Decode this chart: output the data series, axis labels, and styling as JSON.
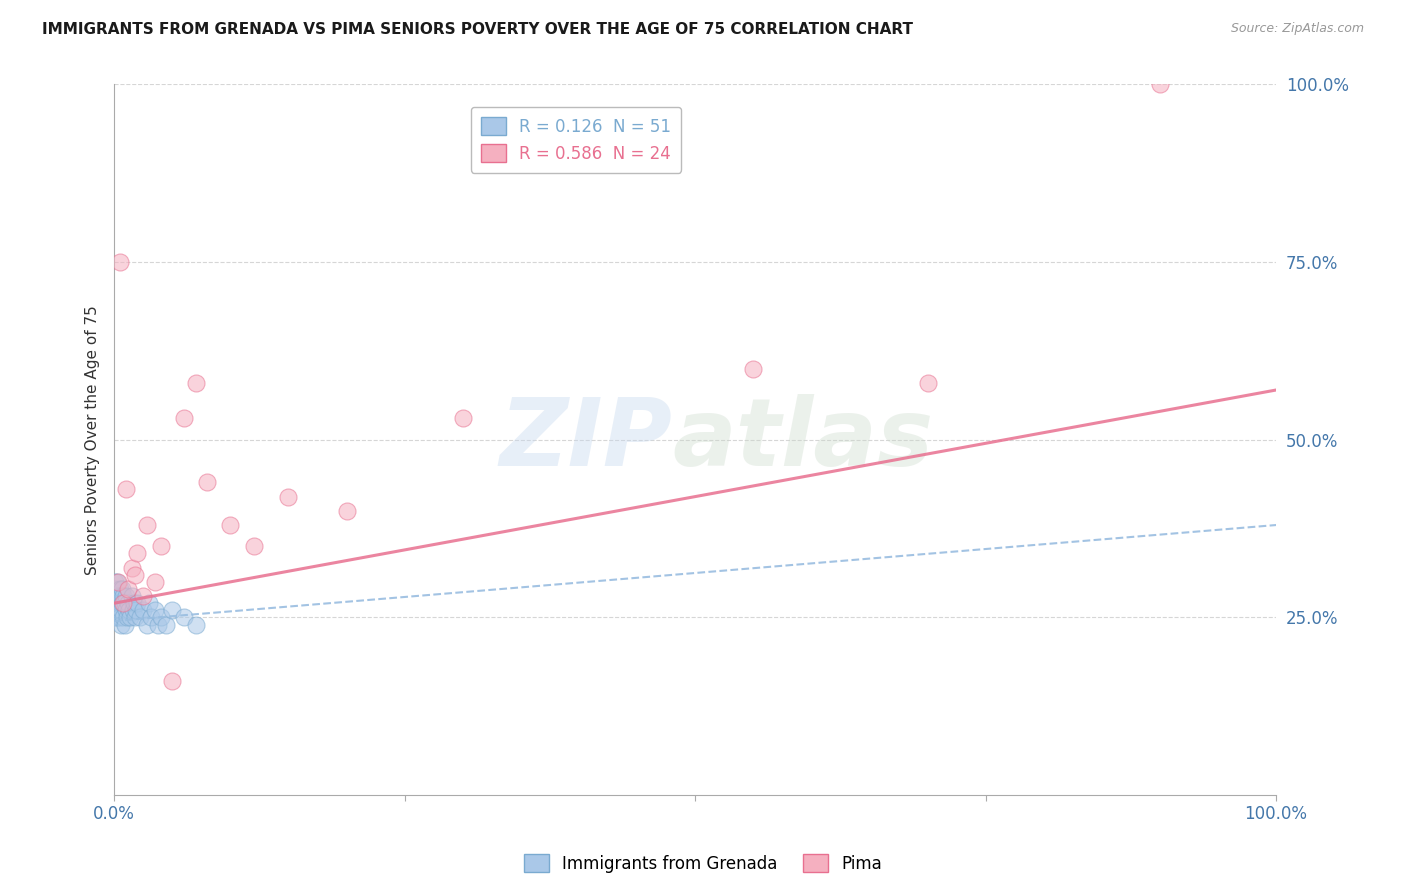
{
  "title": "IMMIGRANTS FROM GRENADA VS PIMA SENIORS POVERTY OVER THE AGE OF 75 CORRELATION CHART",
  "source": "Source: ZipAtlas.com",
  "ylabel": "Seniors Poverty Over the Age of 75",
  "xlim": [
    0,
    1.0
  ],
  "ylim": [
    0,
    1.0
  ],
  "xticks": [
    0,
    0.25,
    0.5,
    0.75,
    1.0
  ],
  "xticklabels": [
    "0.0%",
    "",
    "",
    "",
    "100.0%"
  ],
  "yticks": [
    0.25,
    0.5,
    0.75,
    1.0
  ],
  "yticklabels": [
    "25.0%",
    "50.0%",
    "75.0%",
    "100.0%"
  ],
  "blue_R": 0.126,
  "blue_N": 51,
  "pink_R": 0.586,
  "pink_N": 24,
  "watermark_text": "ZIP",
  "watermark_text2": "atlas",
  "blue_color": "#aac8e8",
  "pink_color": "#f5b0c0",
  "blue_edge_color": "#7aaad0",
  "pink_edge_color": "#e87090",
  "blue_line_color": "#99bde0",
  "pink_line_color": "#e87090",
  "legend_blue_label": "Immigrants from Grenada",
  "legend_pink_label": "Pima",
  "blue_scatter_x": [
    0.001,
    0.001,
    0.001,
    0.001,
    0.001,
    0.002,
    0.002,
    0.002,
    0.002,
    0.003,
    0.003,
    0.003,
    0.003,
    0.004,
    0.004,
    0.005,
    0.005,
    0.005,
    0.006,
    0.006,
    0.006,
    0.007,
    0.007,
    0.008,
    0.008,
    0.009,
    0.009,
    0.01,
    0.01,
    0.011,
    0.012,
    0.013,
    0.014,
    0.015,
    0.016,
    0.017,
    0.018,
    0.019,
    0.02,
    0.022,
    0.025,
    0.028,
    0.03,
    0.032,
    0.035,
    0.038,
    0.04,
    0.045,
    0.05,
    0.06,
    0.07
  ],
  "blue_scatter_y": [
    0.28,
    0.3,
    0.26,
    0.25,
    0.29,
    0.27,
    0.3,
    0.25,
    0.28,
    0.26,
    0.28,
    0.25,
    0.27,
    0.28,
    0.26,
    0.27,
    0.25,
    0.29,
    0.26,
    0.28,
    0.24,
    0.29,
    0.27,
    0.28,
    0.25,
    0.27,
    0.24,
    0.28,
    0.26,
    0.25,
    0.27,
    0.26,
    0.25,
    0.28,
    0.26,
    0.27,
    0.25,
    0.26,
    0.27,
    0.25,
    0.26,
    0.24,
    0.27,
    0.25,
    0.26,
    0.24,
    0.25,
    0.24,
    0.26,
    0.25,
    0.24
  ],
  "pink_scatter_x": [
    0.003,
    0.005,
    0.008,
    0.01,
    0.012,
    0.015,
    0.018,
    0.02,
    0.025,
    0.028,
    0.035,
    0.04,
    0.05,
    0.06,
    0.07,
    0.08,
    0.1,
    0.12,
    0.15,
    0.2,
    0.3,
    0.55,
    0.7,
    0.9
  ],
  "pink_scatter_y": [
    0.3,
    0.75,
    0.27,
    0.43,
    0.29,
    0.32,
    0.31,
    0.34,
    0.28,
    0.38,
    0.3,
    0.35,
    0.16,
    0.53,
    0.58,
    0.44,
    0.38,
    0.35,
    0.42,
    0.4,
    0.53,
    0.6,
    0.58,
    1.0
  ],
  "blue_line_x0": 0.0,
  "blue_line_y0": 0.245,
  "blue_line_x1": 1.0,
  "blue_line_y1": 0.38,
  "pink_line_x0": 0.0,
  "pink_line_y0": 0.27,
  "pink_line_x1": 1.0,
  "pink_line_y1": 0.57
}
